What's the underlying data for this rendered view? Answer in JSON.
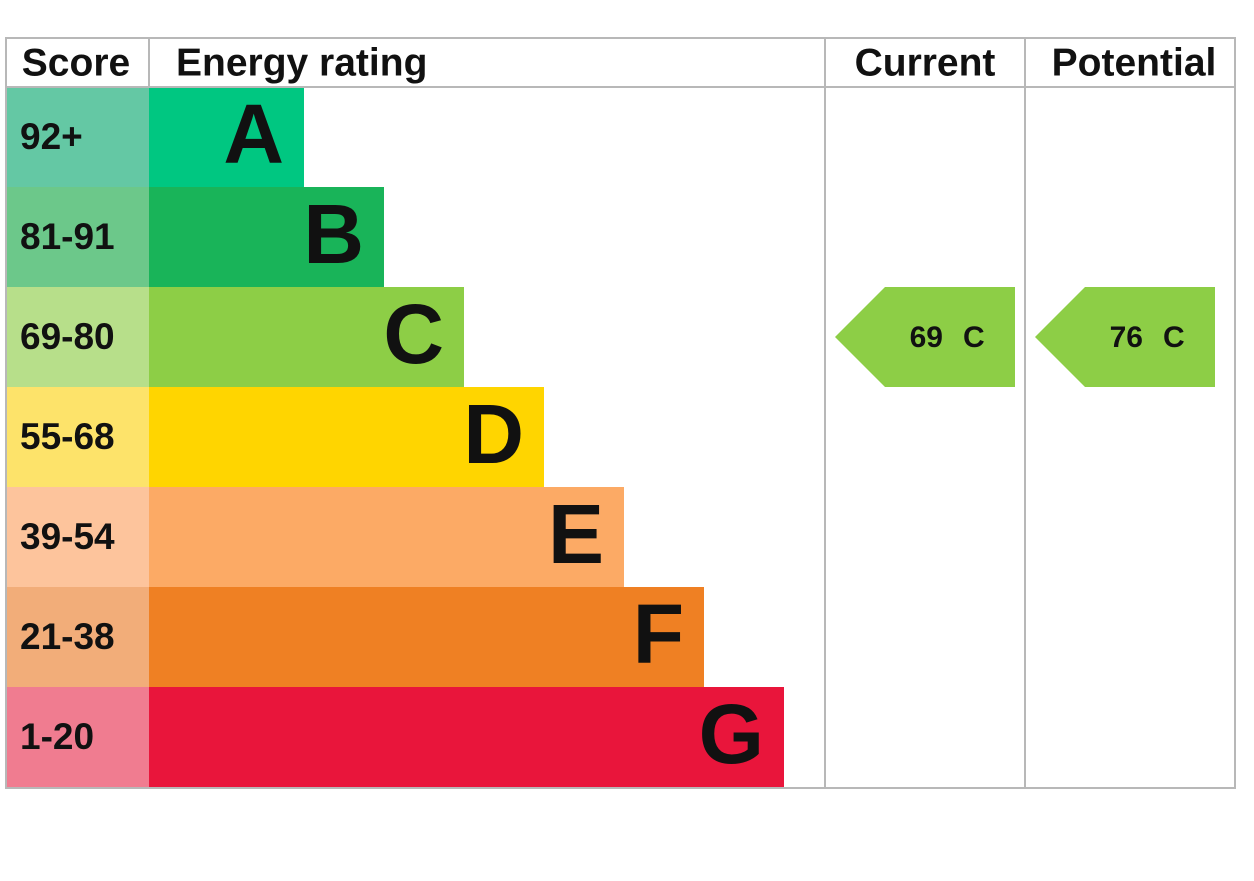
{
  "header": {
    "score": "Score",
    "rating": "Energy rating",
    "current": "Current",
    "potential": "Potential"
  },
  "rows": [
    {
      "score": "92+",
      "band": "A"
    },
    {
      "score": "81-91",
      "band": "B"
    },
    {
      "score": "69-80",
      "band": "C"
    },
    {
      "score": "55-68",
      "band": "D"
    },
    {
      "score": "39-54",
      "band": "E"
    },
    {
      "score": "21-38",
      "band": "F"
    },
    {
      "score": "1-20",
      "band": "G"
    }
  ],
  "current": {
    "score": "69",
    "band": "C"
  },
  "potential": {
    "score": "76",
    "band": "C"
  }
}
